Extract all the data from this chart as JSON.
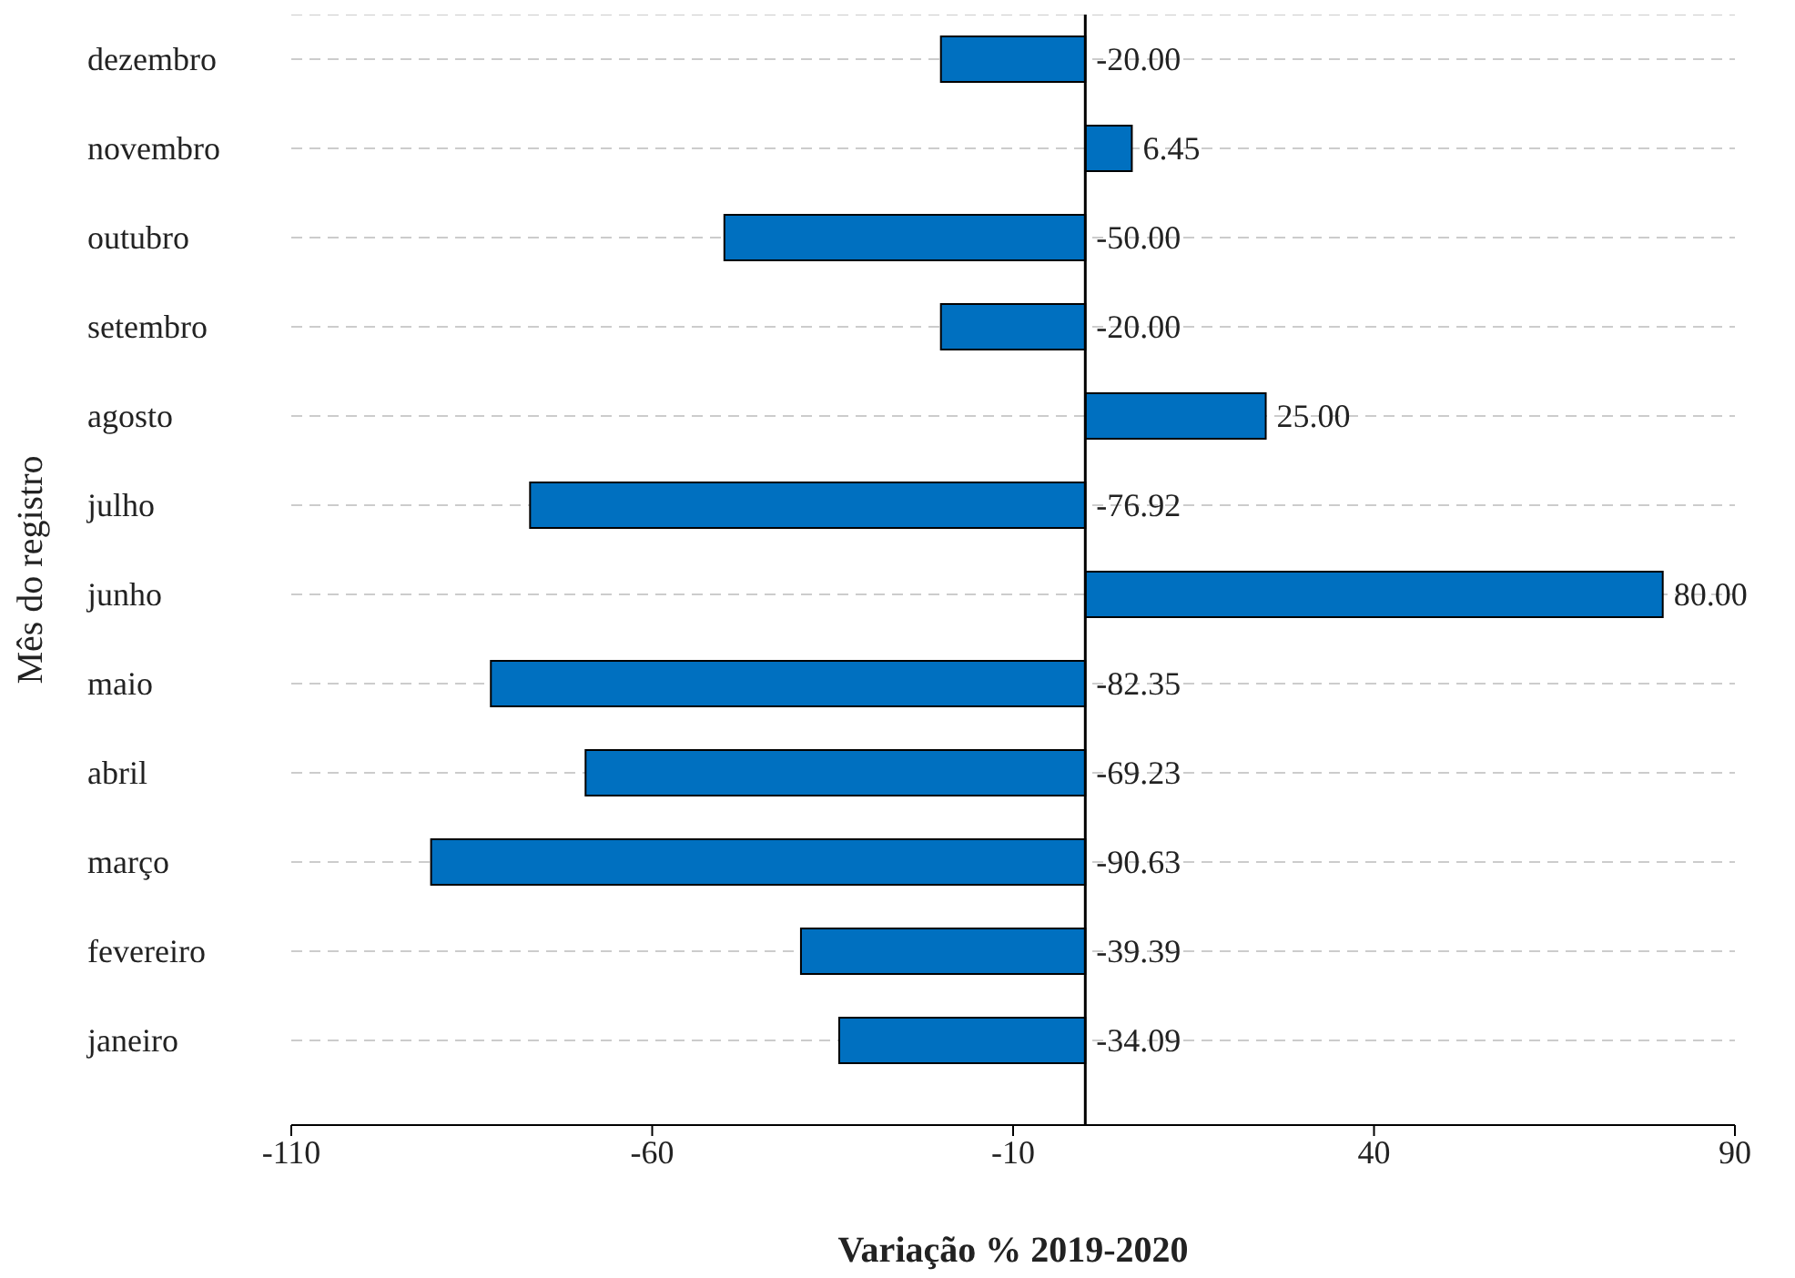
{
  "chart_data": {
    "type": "bar",
    "orientation": "horizontal",
    "xlabel": "Variação % 2019-2020",
    "ylabel": "Mês do registro",
    "categories": [
      "dezembro",
      "novembro",
      "outubro",
      "setembro",
      "agosto",
      "julho",
      "junho",
      "maio",
      "abril",
      "março",
      "fevereiro",
      "janeiro"
    ],
    "values": [
      -20,
      6.45,
      -50,
      -20,
      25,
      -76.92,
      80,
      -82.35,
      -69.23,
      -90.63,
      -39.39,
      -34.09
    ],
    "value_labels": [
      "-20.00",
      "6.45",
      "-50.00",
      "-20.00",
      "25.00",
      "-76.92",
      "80.00",
      "-82.35",
      "-69.23",
      "-90.63",
      "-39.39",
      "-34.09"
    ],
    "color": "#0070c0",
    "xlim": [
      -110,
      90
    ],
    "xticks": [
      -110,
      -60,
      -10,
      40,
      90
    ],
    "grid": "y",
    "legend": false
  }
}
